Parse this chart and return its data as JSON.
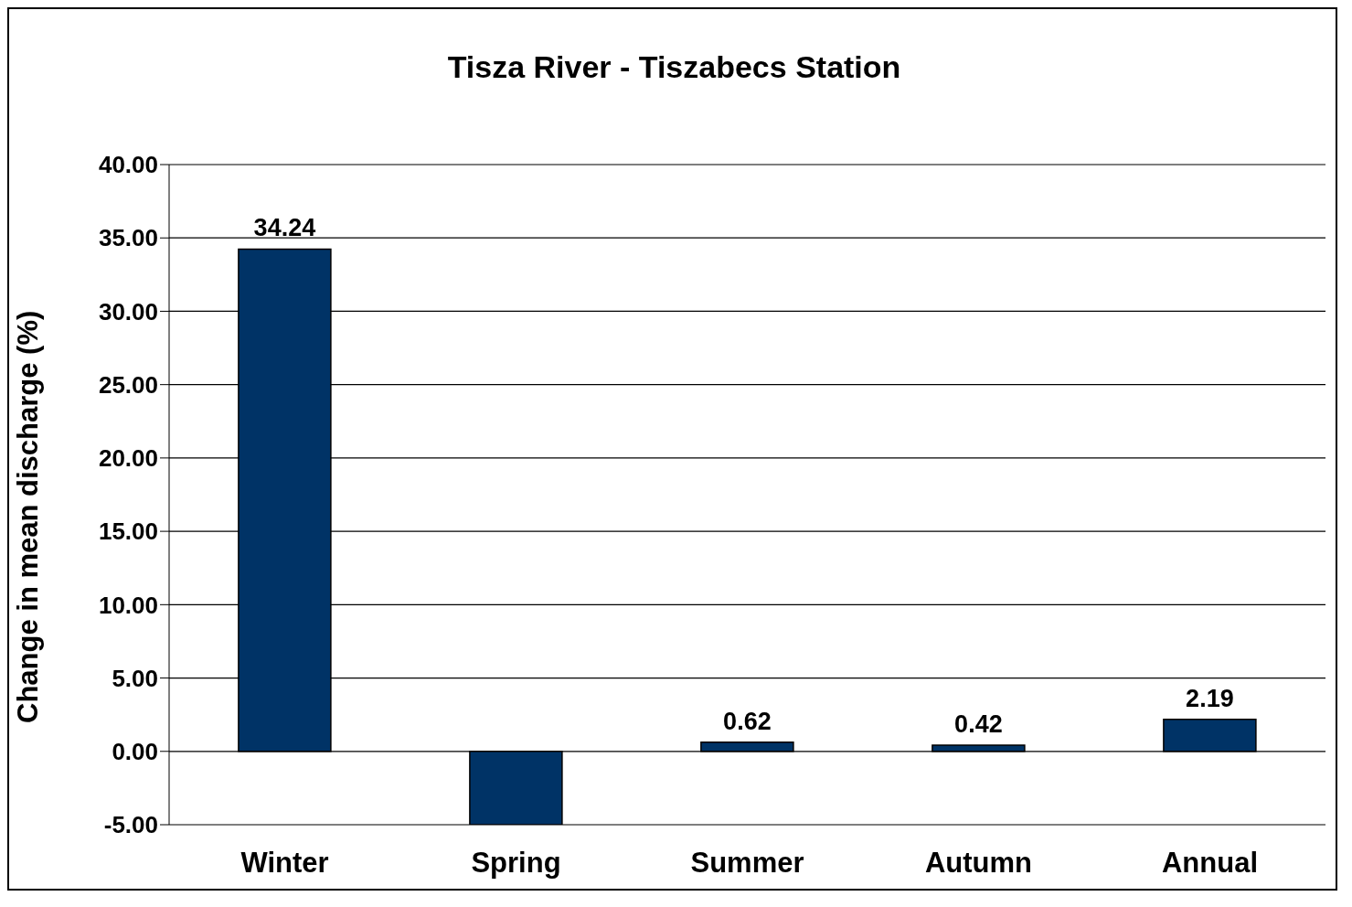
{
  "chart_data": {
    "type": "bar",
    "title": "Tisza River - Tiszabecs Station",
    "ylabel": "Change in mean discharge (%)",
    "categories": [
      "Winter",
      "Spring",
      "Summer",
      "Autumn",
      "Annual"
    ],
    "values": [
      34.24,
      -5,
      0.62,
      0.42,
      2.19
    ],
    "value_labels": [
      "34.24",
      null,
      "0.62",
      "0.42",
      "2.19"
    ],
    "color": "#003366",
    "ylim": [
      -5,
      40
    ],
    "yticks": [
      {
        "value": -5,
        "label": "-5.00"
      },
      {
        "value": 0,
        "label": "0.00"
      },
      {
        "value": 5,
        "label": "5.00"
      },
      {
        "value": 10,
        "label": "10.00"
      },
      {
        "value": 15,
        "label": "15.00"
      },
      {
        "value": 20,
        "label": "20.00"
      },
      {
        "value": 25,
        "label": "25.00"
      },
      {
        "value": 30,
        "label": "30.00"
      },
      {
        "value": 35,
        "label": "35.00"
      },
      {
        "value": 40,
        "label": "40.00"
      }
    ],
    "grid": "y"
  }
}
